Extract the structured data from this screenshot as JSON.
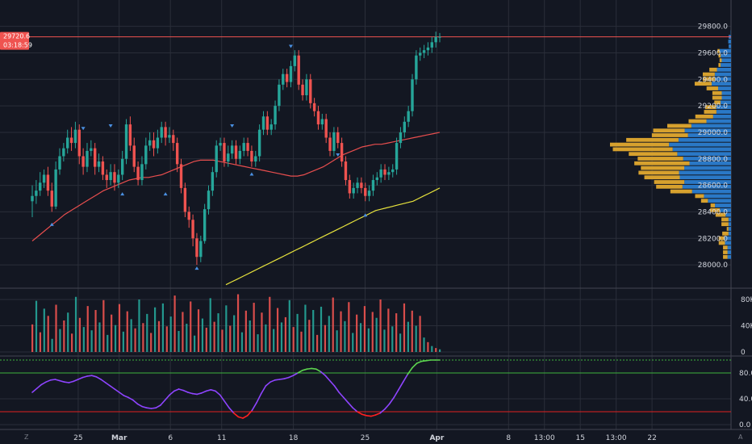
{
  "chart_data": {
    "type": "candlestick",
    "price_axis": {
      "ticks": [
        28000,
        28200,
        28400,
        28600,
        28800,
        29000,
        29200,
        29400,
        29600,
        29800
      ],
      "tick_labels": [
        "28000.0",
        "28200.0",
        "28400.0",
        "28600.0",
        "28800.0",
        "29000.0",
        "29200.0",
        "29400.0",
        "29600.0",
        "29800.0"
      ],
      "range": [
        27830,
        29950
      ]
    },
    "last_price": {
      "label": "29720.6",
      "value": 29720.6,
      "countdown": "03:18:59"
    },
    "time_axis": {
      "labels": [
        {
          "text": "25",
          "bold": false,
          "day": 7
        },
        {
          "text": "Mar",
          "bold": true,
          "day": 11
        },
        {
          "text": "6",
          "bold": false,
          "day": 16
        },
        {
          "text": "11",
          "bold": false,
          "day": 21
        },
        {
          "text": "18",
          "bold": false,
          "day": 28
        },
        {
          "text": "25",
          "bold": false,
          "day": 35
        },
        {
          "text": "Apr",
          "bold": true,
          "day": 42
        },
        {
          "text": "8",
          "bold": false,
          "day": 49
        },
        {
          "text": "13:00",
          "bold": false,
          "day": 52.5
        },
        {
          "text": "15",
          "bold": false,
          "day": 56
        },
        {
          "text": "13:00",
          "bold": false,
          "day": 59.5
        },
        {
          "text": "22",
          "bold": false,
          "day": 63
        }
      ]
    },
    "candles": [
      [
        28480,
        28520,
        28360,
        28600
      ],
      [
        28520,
        28560,
        28460,
        28640
      ],
      [
        28560,
        28620,
        28520,
        28700
      ],
      [
        28620,
        28680,
        28580,
        28720
      ],
      [
        28680,
        28560,
        28520,
        28740
      ],
      [
        28560,
        28440,
        28400,
        28620
      ],
      [
        28440,
        28720,
        28420,
        28780
      ],
      [
        28720,
        28820,
        28680,
        28880
      ],
      [
        28820,
        28880,
        28780,
        28920
      ],
      [
        28880,
        28960,
        28840,
        29020
      ],
      [
        28960,
        28920,
        28860,
        29040
      ],
      [
        28920,
        29020,
        28880,
        29080
      ],
      [
        29020,
        28820,
        28760,
        29060
      ],
      [
        28820,
        28740,
        28680,
        28880
      ],
      [
        28740,
        28860,
        28700,
        28920
      ],
      [
        28860,
        28880,
        28820,
        28940
      ],
      [
        28880,
        28740,
        28680,
        28920
      ],
      [
        28740,
        28780,
        28700,
        28840
      ],
      [
        28780,
        28680,
        28640,
        28820
      ],
      [
        28680,
        28640,
        28580,
        28720
      ],
      [
        28640,
        28700,
        28600,
        28760
      ],
      [
        28700,
        28620,
        28560,
        28760
      ],
      [
        28620,
        28680,
        28580,
        28720
      ],
      [
        28680,
        28800,
        28640,
        28860
      ],
      [
        28800,
        29060,
        28760,
        29100
      ],
      [
        29060,
        28900,
        28860,
        29120
      ],
      [
        28900,
        28740,
        28700,
        28960
      ],
      [
        28740,
        28640,
        28600,
        28780
      ],
      [
        28640,
        28760,
        28600,
        28820
      ],
      [
        28760,
        28900,
        28720,
        28960
      ],
      [
        28900,
        28940,
        28860,
        29000
      ],
      [
        28940,
        28880,
        28820,
        29000
      ],
      [
        28880,
        28960,
        28840,
        29020
      ],
      [
        28960,
        29040,
        28920,
        29080
      ],
      [
        29040,
        28960,
        28900,
        29080
      ],
      [
        28960,
        28980,
        28920,
        29040
      ],
      [
        28980,
        28920,
        28860,
        29020
      ],
      [
        28920,
        28760,
        28700,
        28960
      ],
      [
        28760,
        28580,
        28540,
        28800
      ],
      [
        28580,
        28400,
        28360,
        28620
      ],
      [
        28400,
        28340,
        28280,
        28440
      ],
      [
        28340,
        28200,
        28140,
        28380
      ],
      [
        28200,
        28060,
        28000,
        28240
      ],
      [
        28060,
        28180,
        28020,
        28220
      ],
      [
        28180,
        28420,
        28160,
        28460
      ],
      [
        28420,
        28560,
        28380,
        28600
      ],
      [
        28560,
        28700,
        28520,
        28740
      ],
      [
        28700,
        28900,
        28660,
        28940
      ],
      [
        28900,
        28920,
        28860,
        28960
      ],
      [
        28920,
        28780,
        28740,
        28960
      ],
      [
        28780,
        28840,
        28740,
        28900
      ],
      [
        28840,
        28900,
        28800,
        28940
      ],
      [
        28900,
        28800,
        28760,
        28940
      ],
      [
        28800,
        28860,
        28760,
        28900
      ],
      [
        28860,
        28920,
        28820,
        28960
      ],
      [
        28920,
        28860,
        28820,
        28960
      ],
      [
        28860,
        28780,
        28740,
        28900
      ],
      [
        28780,
        28820,
        28740,
        28860
      ],
      [
        28820,
        29020,
        28780,
        29060
      ],
      [
        29020,
        29120,
        28980,
        29160
      ],
      [
        29120,
        29020,
        28980,
        29160
      ],
      [
        29020,
        29060,
        28980,
        29100
      ],
      [
        29060,
        29200,
        29020,
        29240
      ],
      [
        29200,
        29360,
        29160,
        29400
      ],
      [
        29360,
        29440,
        29320,
        29480
      ],
      [
        29440,
        29380,
        29340,
        29480
      ],
      [
        29380,
        29500,
        29340,
        29540
      ],
      [
        29500,
        29580,
        29460,
        29620
      ],
      [
        29580,
        29360,
        29320,
        29620
      ],
      [
        29360,
        29280,
        29240,
        29400
      ],
      [
        29280,
        29400,
        29240,
        29440
      ],
      [
        29400,
        29220,
        29180,
        29440
      ],
      [
        29220,
        29160,
        29120,
        29260
      ],
      [
        29160,
        29060,
        29020,
        29200
      ],
      [
        29060,
        29100,
        29020,
        29140
      ],
      [
        29100,
        28960,
        28920,
        29140
      ],
      [
        28960,
        28860,
        28820,
        29000
      ],
      [
        28860,
        29000,
        28820,
        29040
      ],
      [
        29000,
        28920,
        28880,
        29040
      ],
      [
        28920,
        28780,
        28740,
        28960
      ],
      [
        28780,
        28640,
        28600,
        28820
      ],
      [
        28640,
        28540,
        28500,
        28680
      ],
      [
        28540,
        28580,
        28500,
        28620
      ],
      [
        28580,
        28620,
        28540,
        28660
      ],
      [
        28620,
        28580,
        28540,
        28660
      ],
      [
        28580,
        28520,
        28480,
        28620
      ],
      [
        28520,
        28560,
        28480,
        28600
      ],
      [
        28560,
        28640,
        28520,
        28680
      ],
      [
        28640,
        28660,
        28600,
        28700
      ],
      [
        28660,
        28720,
        28620,
        28760
      ],
      [
        28720,
        28680,
        28640,
        28760
      ],
      [
        28680,
        28700,
        28640,
        28740
      ],
      [
        28700,
        28720,
        28660,
        28760
      ],
      [
        28720,
        28920,
        28680,
        28960
      ],
      [
        28920,
        29000,
        28880,
        29040
      ],
      [
        29000,
        29080,
        28960,
        29120
      ],
      [
        29080,
        29160,
        29040,
        29200
      ],
      [
        29160,
        29400,
        29120,
        29440
      ],
      [
        29400,
        29580,
        29360,
        29620
      ],
      [
        29580,
        29600,
        29540,
        29640
      ],
      [
        29600,
        29620,
        29560,
        29660
      ],
      [
        29620,
        29640,
        29580,
        29680
      ],
      [
        29640,
        29680,
        29600,
        29720
      ],
      [
        29680,
        29720,
        29640,
        29760
      ],
      [
        29720,
        29720.6,
        29680,
        29750
      ]
    ],
    "sma_red": [
      28180,
      28220,
      28260,
      28300,
      28340,
      28380,
      28410,
      28440,
      28470,
      28500,
      28530,
      28560,
      28580,
      28600,
      28620,
      28640,
      28650,
      28660,
      28660,
      28670,
      28680,
      28700,
      28720,
      28740,
      28760,
      28780,
      28790,
      28790,
      28790,
      28780,
      28770,
      28760,
      28750,
      28740,
      28730,
      28720,
      28710,
      28700,
      28690,
      28680,
      28670,
      28670,
      28680,
      28700,
      28720,
      28740,
      28770,
      28800,
      28830,
      28850,
      28870,
      28890,
      28900,
      28910,
      28910,
      28920,
      28930,
      28940,
      28950,
      28960,
      28970,
      28980,
      28990,
      29000
    ],
    "sma_yellow": [
      27850,
      27870,
      27890,
      27910,
      27930,
      27950,
      27970,
      27990,
      28010,
      28030,
      28050,
      28070,
      28090,
      28110,
      28130,
      28150,
      28170,
      28190,
      28210,
      28230,
      28250,
      28270,
      28290,
      28310,
      28330,
      28350,
      28370,
      28390,
      28410,
      28420,
      28430,
      28440,
      28450,
      28460,
      28470,
      28480,
      28500,
      28520,
      28540,
      28560,
      28580
    ],
    "pivots_down": [
      {
        "i": 13,
        "p": 28980
      },
      {
        "i": 20,
        "p": 29000
      },
      {
        "i": 51,
        "p": 29000
      },
      {
        "i": 66,
        "p": 29600
      },
      {
        "i": 78,
        "p": 28780
      }
    ],
    "pivots_up": [
      {
        "i": 5,
        "p": 28330
      },
      {
        "i": 23,
        "p": 28560
      },
      {
        "i": 34,
        "p": 28560
      },
      {
        "i": 42,
        "p": 28000
      },
      {
        "i": 56,
        "p": 28710
      },
      {
        "i": 85,
        "p": 28400
      }
    ],
    "volume_axis": {
      "ticks": [
        0,
        40000,
        80000
      ],
      "tick_labels": [
        "0",
        "40K",
        "80K"
      ],
      "range": [
        0,
        96000
      ]
    },
    "volume": [
      42000,
      78000,
      30000,
      66000,
      55000,
      20000,
      72000,
      35000,
      48000,
      60000,
      28000,
      84000,
      52000,
      38000,
      70000,
      33000,
      64000,
      45000,
      79000,
      26000,
      57000,
      41000,
      73000,
      31000,
      62000,
      50000,
      36000,
      80000,
      44000,
      58000,
      29000,
      68000,
      47000,
      74000,
      39000,
      54000,
      86000,
      32000,
      61000,
      43000,
      77000,
      25000,
      65000,
      51000,
      37000,
      82000,
      46000,
      59000,
      34000,
      71000,
      40000,
      56000,
      88000,
      30000,
      63000,
      48000,
      75000,
      27000,
      60000,
      42000,
      84000,
      35000,
      67000,
      45000,
      53000,
      79000,
      38000,
      58000,
      31000,
      72000,
      49000,
      64000,
      26000,
      69000,
      41000,
      55000,
      83000,
      33000,
      62000,
      47000,
      76000,
      29000,
      57000,
      44000,
      70000,
      36000,
      61000,
      52000,
      80000,
      34000,
      66000,
      39000,
      59000,
      28000,
      74000,
      46000,
      63000,
      40000,
      55000,
      22000,
      15000,
      9000,
      6000,
      4000
    ],
    "oscillator_axis": {
      "ticks": [
        0,
        40,
        80
      ],
      "tick_labels": [
        "0.0",
        "40.0",
        "80.0"
      ],
      "range": [
        -5,
        105
      ],
      "upper": 80,
      "lower": 20,
      "top_dotted": 100
    },
    "oscillator": [
      50,
      56,
      62,
      66,
      69,
      70,
      68,
      66,
      65,
      67,
      70,
      73,
      75,
      76,
      74,
      70,
      65,
      60,
      55,
      50,
      45,
      42,
      38,
      32,
      28,
      26,
      25,
      26,
      30,
      38,
      46,
      52,
      55,
      53,
      50,
      48,
      47,
      49,
      52,
      54,
      52,
      46,
      36,
      26,
      18,
      12,
      10,
      14,
      22,
      34,
      48,
      60,
      66,
      69,
      70,
      71,
      73,
      76,
      80,
      84,
      86,
      87,
      86,
      82,
      76,
      68,
      60,
      50,
      42,
      34,
      26,
      20,
      16,
      14,
      13,
      15,
      18,
      24,
      32,
      42,
      54,
      66,
      78,
      88,
      95,
      98,
      99,
      100,
      100,
      100
    ]
  },
  "ui": {
    "bottom_left_label": "Z",
    "bottom_right_label": "A"
  },
  "colors": {
    "background": "#131722",
    "up": "#26a69a",
    "down": "#ef5350",
    "sma_red": "#e84e4e",
    "sma_yellow": "#e7e33d",
    "osc_mid": "#8e44ff",
    "osc_high": "#5cd34f",
    "osc_low": "#ff2020",
    "line_upper": "#3cb33c",
    "line_lower": "#e02020",
    "vp_up": "#2a78c6",
    "vp_down": "#d7a12e",
    "price_badge": "#ef5350"
  }
}
